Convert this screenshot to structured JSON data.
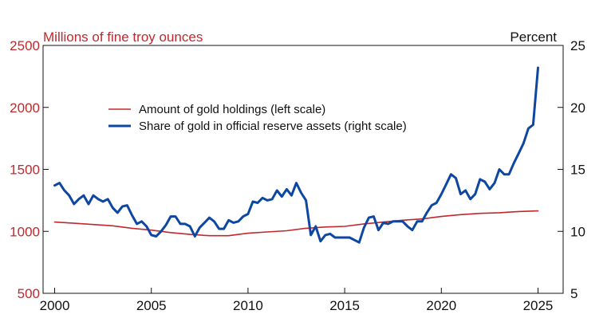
{
  "chart_data": {
    "type": "line",
    "left_axis_label": "Millions of fine troy ounces",
    "right_axis_label": "Percent",
    "x_ticks": [
      "2000",
      "2005",
      "2010",
      "2015",
      "2020",
      "2025"
    ],
    "x_range": [
      1999.4,
      2026.3
    ],
    "left_ylim": [
      500,
      2500
    ],
    "left_ticks": [
      "500",
      "1000",
      "1500",
      "2000",
      "2500"
    ],
    "right_ylim": [
      5,
      25
    ],
    "right_ticks": [
      "5",
      "10",
      "15",
      "20",
      "25"
    ],
    "colors": {
      "holdings": "#c0282d",
      "share": "#0d47a1",
      "left_axis": "#c0282d",
      "right_axis": "#111111"
    },
    "series": [
      {
        "name": "Amount of gold holdings (left scale)",
        "axis": "left",
        "x": [
          2000,
          2001,
          2002,
          2003,
          2004,
          2005,
          2006,
          2007,
          2008,
          2009,
          2010,
          2011,
          2012,
          2013,
          2014,
          2015,
          2016,
          2017,
          2018,
          2019,
          2020,
          2021,
          2022,
          2023,
          2024,
          2025
        ],
        "values": [
          1075,
          1065,
          1055,
          1045,
          1025,
          1010,
          990,
          975,
          965,
          965,
          985,
          995,
          1005,
          1025,
          1035,
          1040,
          1060,
          1075,
          1090,
          1100,
          1120,
          1135,
          1145,
          1150,
          1160,
          1165
        ]
      },
      {
        "name": "Share of gold in official reserve assets (right scale)",
        "axis": "right",
        "x": [
          2000,
          2000.25,
          2000.5,
          2000.75,
          2001,
          2001.25,
          2001.5,
          2001.75,
          2002,
          2002.25,
          2002.5,
          2002.75,
          2003,
          2003.25,
          2003.5,
          2003.75,
          2004,
          2004.25,
          2004.5,
          2004.75,
          2005,
          2005.25,
          2005.5,
          2005.75,
          2006,
          2006.25,
          2006.5,
          2006.75,
          2007,
          2007.25,
          2007.5,
          2007.75,
          2008,
          2008.25,
          2008.5,
          2008.75,
          2009,
          2009.25,
          2009.5,
          2009.75,
          2010,
          2010.25,
          2010.5,
          2010.75,
          2011,
          2011.25,
          2011.5,
          2011.75,
          2012,
          2012.25,
          2012.5,
          2012.75,
          2013,
          2013.25,
          2013.5,
          2013.75,
          2014,
          2014.25,
          2014.5,
          2014.75,
          2015,
          2015.25,
          2015.5,
          2015.75,
          2016,
          2016.25,
          2016.5,
          2016.75,
          2017,
          2017.25,
          2017.5,
          2017.75,
          2018,
          2018.25,
          2018.5,
          2018.75,
          2019,
          2019.25,
          2019.5,
          2019.75,
          2020,
          2020.25,
          2020.5,
          2020.75,
          2021,
          2021.25,
          2021.5,
          2021.75,
          2022,
          2022.25,
          2022.5,
          2022.75,
          2023,
          2023.25,
          2023.5,
          2023.75,
          2024,
          2024.25,
          2024.5,
          2024.75,
          2025
        ],
        "values": [
          13.7,
          13.9,
          13.3,
          12.9,
          12.2,
          12.6,
          12.9,
          12.2,
          12.9,
          12.6,
          12.4,
          12.6,
          11.9,
          11.5,
          12.0,
          12.1,
          11.3,
          10.6,
          10.8,
          10.4,
          9.7,
          9.6,
          10.0,
          10.5,
          11.2,
          11.2,
          10.6,
          10.6,
          10.4,
          9.6,
          10.3,
          10.7,
          11.1,
          10.8,
          10.2,
          10.2,
          10.9,
          10.7,
          10.8,
          11.2,
          11.4,
          12.4,
          12.3,
          12.7,
          12.5,
          12.6,
          13.3,
          12.8,
          13.4,
          12.9,
          13.9,
          13.1,
          12.5,
          9.7,
          10.4,
          9.2,
          9.7,
          9.8,
          9.5,
          9.5,
          9.5,
          9.5,
          9.3,
          9.1,
          10.3,
          11.1,
          11.2,
          10.1,
          10.7,
          10.6,
          10.8,
          10.8,
          10.8,
          10.4,
          10.1,
          10.8,
          10.8,
          11.5,
          12.1,
          12.3,
          13.0,
          13.8,
          14.6,
          14.3,
          13.0,
          13.3,
          12.6,
          13.0,
          14.2,
          14.0,
          13.4,
          13.9,
          15.0,
          14.6,
          14.6,
          15.5,
          16.3,
          17.1,
          18.3,
          18.6,
          23.2
        ]
      }
    ]
  }
}
